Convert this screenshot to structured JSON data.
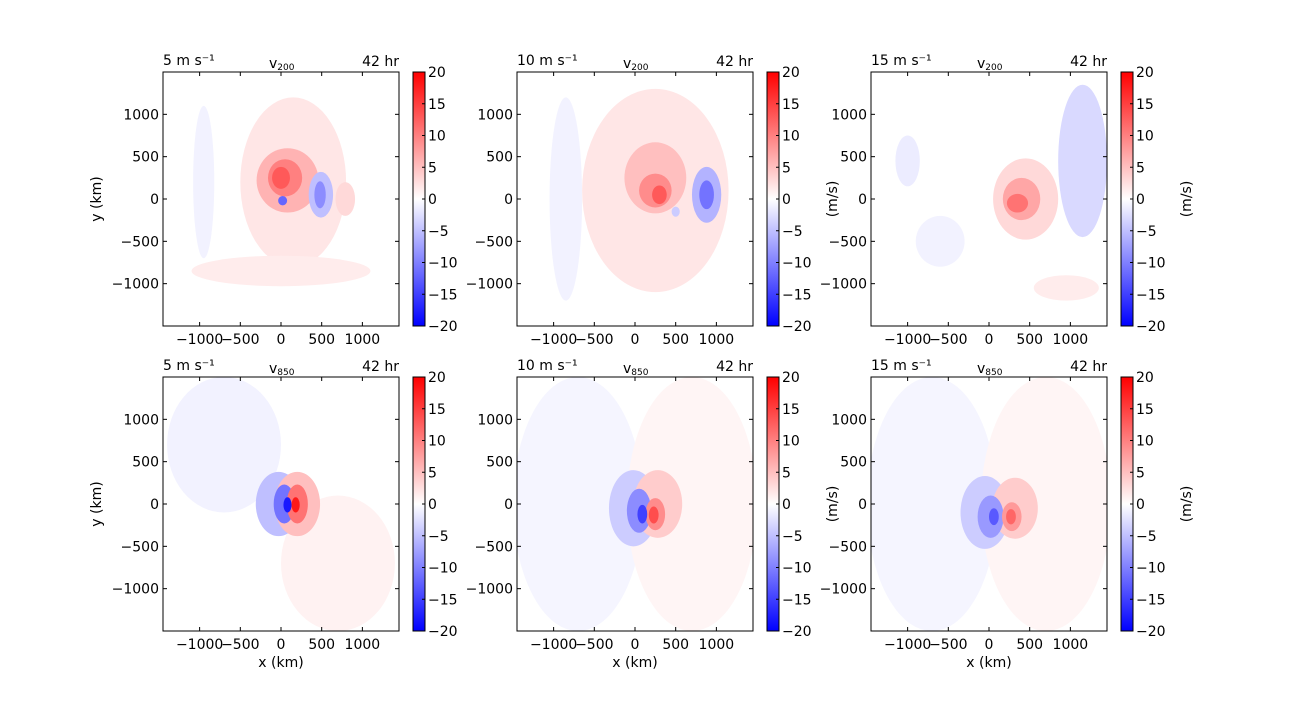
{
  "figure": {
    "colorbar_ticks": [
      "20",
      "15",
      "10",
      "5",
      "0",
      "−5",
      "−10",
      "−15",
      "−20"
    ],
    "colorbar_label": "(m/s)",
    "x_ticks": [
      "−1000",
      "−500",
      "0",
      "500",
      "1000"
    ],
    "y_ticks": [
      "1000",
      "500",
      "0",
      "−500",
      "−1000"
    ],
    "xlabel": "x (km)",
    "ylabel": "y (km)",
    "time_label": "42 hr",
    "colors": {
      "positive": "#ff0000",
      "negative": "#0000ff",
      "zero": "#ffffff"
    }
  },
  "chart_data": [
    {
      "type": "heatmap",
      "panel": "top-left",
      "left_title": "5 m s⁻¹",
      "center_var": "v",
      "center_sub": "200",
      "right_title": "42 hr",
      "xlabel": "",
      "ylabel": "y (km)",
      "colorbar_label": "",
      "xlim": [
        -1450,
        1450
      ],
      "ylim": [
        -1500,
        1500
      ],
      "clim": [
        -20,
        20
      ],
      "features": [
        {
          "x": 150,
          "y": 200,
          "rx": 650,
          "ry": 1000,
          "v": 2
        },
        {
          "x": 0,
          "y": -850,
          "rx": 1100,
          "ry": 180,
          "v": 1.5
        },
        {
          "x": 80,
          "y": 220,
          "rx": 380,
          "ry": 380,
          "v": 6
        },
        {
          "x": 50,
          "y": 250,
          "rx": 210,
          "ry": 220,
          "v": 10
        },
        {
          "x": 0,
          "y": 250,
          "rx": 110,
          "ry": 130,
          "v": 13
        },
        {
          "x": 20,
          "y": -20,
          "rx": 55,
          "ry": 55,
          "v": -12
        },
        {
          "x": 490,
          "y": 50,
          "rx": 150,
          "ry": 270,
          "v": -5
        },
        {
          "x": 480,
          "y": 50,
          "rx": 70,
          "ry": 160,
          "v": -9
        },
        {
          "x": 790,
          "y": 0,
          "rx": 120,
          "ry": 200,
          "v": 3
        },
        {
          "x": -950,
          "y": 200,
          "rx": 130,
          "ry": 900,
          "v": -1
        }
      ]
    },
    {
      "type": "heatmap",
      "panel": "top-middle",
      "left_title": "10 m s⁻¹",
      "center_var": "v",
      "center_sub": "200",
      "right_title": "42 hr",
      "xlabel": "",
      "ylabel": "",
      "colorbar_label": "(m/s)",
      "xlim": [
        -1450,
        1450
      ],
      "ylim": [
        -1500,
        1500
      ],
      "clim": [
        -20,
        20
      ],
      "features": [
        {
          "x": 250,
          "y": 100,
          "rx": 900,
          "ry": 1200,
          "v": 2
        },
        {
          "x": 250,
          "y": 250,
          "rx": 380,
          "ry": 420,
          "v": 5
        },
        {
          "x": 250,
          "y": 100,
          "rx": 200,
          "ry": 200,
          "v": 9
        },
        {
          "x": 300,
          "y": 50,
          "rx": 90,
          "ry": 110,
          "v": 13
        },
        {
          "x": 880,
          "y": 50,
          "rx": 180,
          "ry": 330,
          "v": -6
        },
        {
          "x": 880,
          "y": 50,
          "rx": 90,
          "ry": 170,
          "v": -11
        },
        {
          "x": -850,
          "y": 0,
          "rx": 200,
          "ry": 1200,
          "v": -1
        },
        {
          "x": 500,
          "y": -150,
          "rx": 50,
          "ry": 60,
          "v": -4
        }
      ]
    },
    {
      "type": "heatmap",
      "panel": "top-right",
      "left_title": "15 m s⁻¹",
      "center_var": "v",
      "center_sub": "200",
      "right_title": "42 hr",
      "xlabel": "",
      "ylabel": "",
      "colorbar_label": "(m/s)",
      "xlim": [
        -1450,
        1450
      ],
      "ylim": [
        -1500,
        1500
      ],
      "clim": [
        -20,
        20
      ],
      "features": [
        {
          "x": 450,
          "y": 0,
          "rx": 400,
          "ry": 480,
          "v": 3
        },
        {
          "x": 400,
          "y": 0,
          "rx": 230,
          "ry": 250,
          "v": 7
        },
        {
          "x": 350,
          "y": -50,
          "rx": 130,
          "ry": 110,
          "v": 11
        },
        {
          "x": 1150,
          "y": 450,
          "rx": 300,
          "ry": 900,
          "v": -3
        },
        {
          "x": -1000,
          "y": 450,
          "rx": 150,
          "ry": 300,
          "v": -1.5
        },
        {
          "x": -600,
          "y": -500,
          "rx": 300,
          "ry": 300,
          "v": -1
        },
        {
          "x": 950,
          "y": -1050,
          "rx": 400,
          "ry": 150,
          "v": 1.5
        }
      ]
    },
    {
      "type": "heatmap",
      "panel": "bottom-left",
      "left_title": "5 m s⁻¹",
      "center_var": "v",
      "center_sub": "850",
      "right_title": "42 hr",
      "xlabel": "x (km)",
      "ylabel": "y (km)",
      "colorbar_label": "",
      "xlim": [
        -1450,
        1450
      ],
      "ylim": [
        -1500,
        1500
      ],
      "clim": [
        -20,
        20
      ],
      "features": [
        {
          "x": -700,
          "y": 700,
          "rx": 700,
          "ry": 800,
          "v": -1
        },
        {
          "x": 700,
          "y": -700,
          "rx": 700,
          "ry": 800,
          "v": 1
        },
        {
          "x": -30,
          "y": 0,
          "rx": 280,
          "ry": 380,
          "v": -5
        },
        {
          "x": 200,
          "y": 0,
          "rx": 280,
          "ry": 380,
          "v": 5
        },
        {
          "x": 40,
          "y": 0,
          "rx": 130,
          "ry": 230,
          "v": -11
        },
        {
          "x": 200,
          "y": 0,
          "rx": 130,
          "ry": 230,
          "v": 11
        },
        {
          "x": 80,
          "y": -10,
          "rx": 50,
          "ry": 90,
          "v": -18
        },
        {
          "x": 180,
          "y": -10,
          "rx": 50,
          "ry": 90,
          "v": 18
        }
      ]
    },
    {
      "type": "heatmap",
      "panel": "bottom-middle",
      "left_title": "10 m s⁻¹",
      "center_var": "v",
      "center_sub": "850",
      "right_title": "42 hr",
      "xlabel": "x (km)",
      "ylabel": "",
      "colorbar_label": "(m/s)",
      "xlim": [
        -1450,
        1450
      ],
      "ylim": [
        -1500,
        1500
      ],
      "clim": [
        -20,
        20
      ],
      "features": [
        {
          "x": -700,
          "y": 0,
          "rx": 800,
          "ry": 1500,
          "v": -0.8
        },
        {
          "x": 700,
          "y": 0,
          "rx": 800,
          "ry": 1500,
          "v": 0.8
        },
        {
          "x": -20,
          "y": -50,
          "rx": 300,
          "ry": 450,
          "v": -4
        },
        {
          "x": 280,
          "y": 0,
          "rx": 300,
          "ry": 400,
          "v": 4
        },
        {
          "x": 50,
          "y": -80,
          "rx": 150,
          "ry": 260,
          "v": -9
        },
        {
          "x": 250,
          "y": -120,
          "rx": 120,
          "ry": 190,
          "v": 9
        },
        {
          "x": 90,
          "y": -120,
          "rx": 60,
          "ry": 110,
          "v": -15
        },
        {
          "x": 230,
          "y": -130,
          "rx": 60,
          "ry": 100,
          "v": 14
        }
      ]
    },
    {
      "type": "heatmap",
      "panel": "bottom-right",
      "left_title": "15 m s⁻¹",
      "center_var": "v",
      "center_sub": "850",
      "right_title": "42 hr",
      "xlabel": "x (km)",
      "ylabel": "",
      "colorbar_label": "(m/s)",
      "xlim": [
        -1450,
        1450
      ],
      "ylim": [
        -1500,
        1500
      ],
      "clim": [
        -20,
        20
      ],
      "features": [
        {
          "x": -700,
          "y": 0,
          "rx": 800,
          "ry": 1500,
          "v": -0.8
        },
        {
          "x": 700,
          "y": 0,
          "rx": 800,
          "ry": 1500,
          "v": 0.8
        },
        {
          "x": -50,
          "y": -100,
          "rx": 300,
          "ry": 430,
          "v": -4
        },
        {
          "x": 320,
          "y": -50,
          "rx": 280,
          "ry": 360,
          "v": 4
        },
        {
          "x": 20,
          "y": -150,
          "rx": 160,
          "ry": 250,
          "v": -8
        },
        {
          "x": 280,
          "y": -150,
          "rx": 120,
          "ry": 170,
          "v": 8
        },
        {
          "x": 60,
          "y": -150,
          "rx": 60,
          "ry": 100,
          "v": -13
        },
        {
          "x": 270,
          "y": -150,
          "rx": 60,
          "ry": 90,
          "v": 12
        }
      ]
    }
  ]
}
